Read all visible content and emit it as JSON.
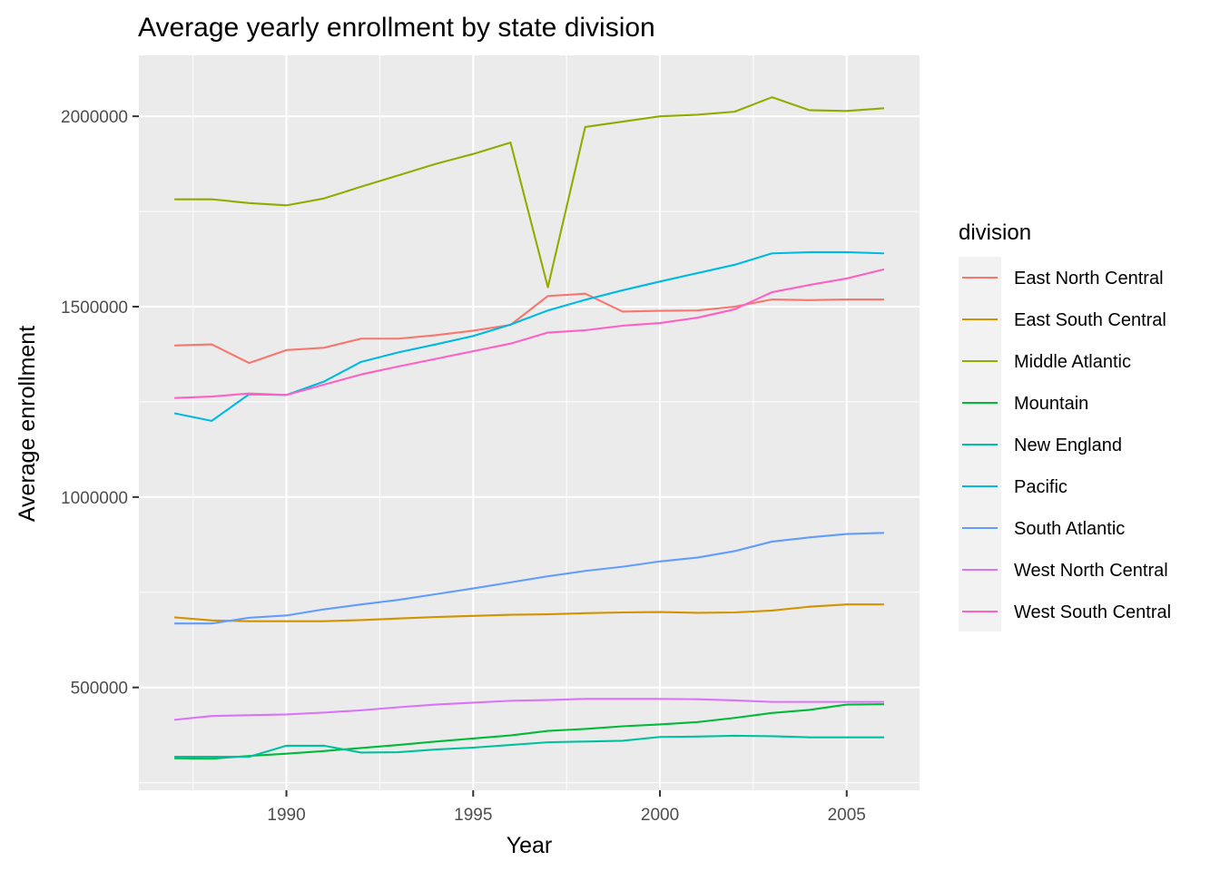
{
  "chart_data": {
    "type": "line",
    "title": "Average yearly enrollment by state division",
    "xlabel": "Year",
    "ylabel": "Average enrollment",
    "xlim": [
      1986.05,
      2006.95
    ],
    "ylim": [
      230000,
      2160000
    ],
    "x_ticks": [
      1990,
      1995,
      2000,
      2005
    ],
    "x_tick_labels": [
      "1990",
      "1995",
      "2000",
      "2005"
    ],
    "y_ticks": [
      500000,
      1000000,
      1500000,
      2000000
    ],
    "y_tick_labels": [
      "500000",
      "1000000",
      "1500000",
      "2000000"
    ],
    "grid": true,
    "legend": {
      "title": "division",
      "position": "right"
    },
    "x": [
      1987,
      1988,
      1989,
      1990,
      1991,
      1992,
      1993,
      1994,
      1995,
      1996,
      1997,
      1998,
      1999,
      2000,
      2001,
      2002,
      2003,
      2004,
      2005,
      2006
    ],
    "series": [
      {
        "name": "East North Central",
        "color": "#F8766D",
        "values": [
          1398000,
          1401000,
          1352000,
          1386000,
          1392000,
          1416000,
          1416000,
          1425000,
          1437000,
          1452000,
          1528000,
          1534000,
          1487000,
          1489000,
          1490000,
          1500000,
          1519000,
          1517000,
          1519000,
          1519000
        ]
      },
      {
        "name": "East South Central",
        "color": "#D39200",
        "values": [
          684000,
          676000,
          674000,
          674000,
          674000,
          677000,
          681000,
          685000,
          688000,
          691000,
          692000,
          695000,
          697000,
          698000,
          696000,
          697000,
          702000,
          712000,
          718000,
          718000
        ]
      },
      {
        "name": "Middle Atlantic",
        "color": "#93AA00",
        "values": [
          1782000,
          1782000,
          1772000,
          1766000,
          1784000,
          1815000,
          1845000,
          1875000,
          1901000,
          1931000,
          1551000,
          1972000,
          1986000,
          2000000,
          2004000,
          2012000,
          2050000,
          2016000,
          2014000,
          2021000
        ]
      },
      {
        "name": "Mountain",
        "color": "#00BA38",
        "values": [
          314000,
          313000,
          320000,
          326000,
          333000,
          341000,
          349000,
          358000,
          366000,
          374000,
          386000,
          391000,
          398000,
          403000,
          409000,
          420000,
          433000,
          441000,
          455000,
          456000
        ]
      },
      {
        "name": "New England",
        "color": "#00C19F",
        "values": [
          318000,
          318000,
          318000,
          347000,
          347000,
          329000,
          330000,
          337000,
          342000,
          349000,
          356000,
          358000,
          360000,
          370000,
          371000,
          373000,
          372000,
          369000,
          369000,
          369000
        ]
      },
      {
        "name": "Pacific",
        "color": "#00B9E3",
        "values": [
          1220000,
          1200000,
          1270000,
          1268000,
          1303000,
          1355000,
          1380000,
          1401000,
          1423000,
          1453000,
          1490000,
          1518000,
          1543000,
          1566000,
          1588000,
          1610000,
          1640000,
          1643000,
          1643000,
          1640000
        ]
      },
      {
        "name": "South Atlantic",
        "color": "#619CFF",
        "values": [
          668000,
          668000,
          683000,
          689000,
          705000,
          718000,
          730000,
          745000,
          760000,
          776000,
          792000,
          806000,
          817000,
          831000,
          841000,
          858000,
          883000,
          894000,
          903000,
          906000
        ]
      },
      {
        "name": "West North Central",
        "color": "#DB72FB",
        "values": [
          415000,
          425000,
          427000,
          429000,
          434000,
          440000,
          448000,
          455000,
          460000,
          465000,
          467000,
          470000,
          470000,
          470000,
          469000,
          466000,
          462000,
          462000,
          462000,
          462000
        ]
      },
      {
        "name": "West South Central",
        "color": "#FF61C3",
        "values": [
          1260000,
          1264000,
          1272000,
          1268000,
          1295000,
          1322000,
          1343000,
          1363000,
          1383000,
          1403000,
          1432000,
          1438000,
          1450000,
          1457000,
          1471000,
          1493000,
          1538000,
          1557000,
          1574000,
          1598000
        ]
      }
    ]
  }
}
